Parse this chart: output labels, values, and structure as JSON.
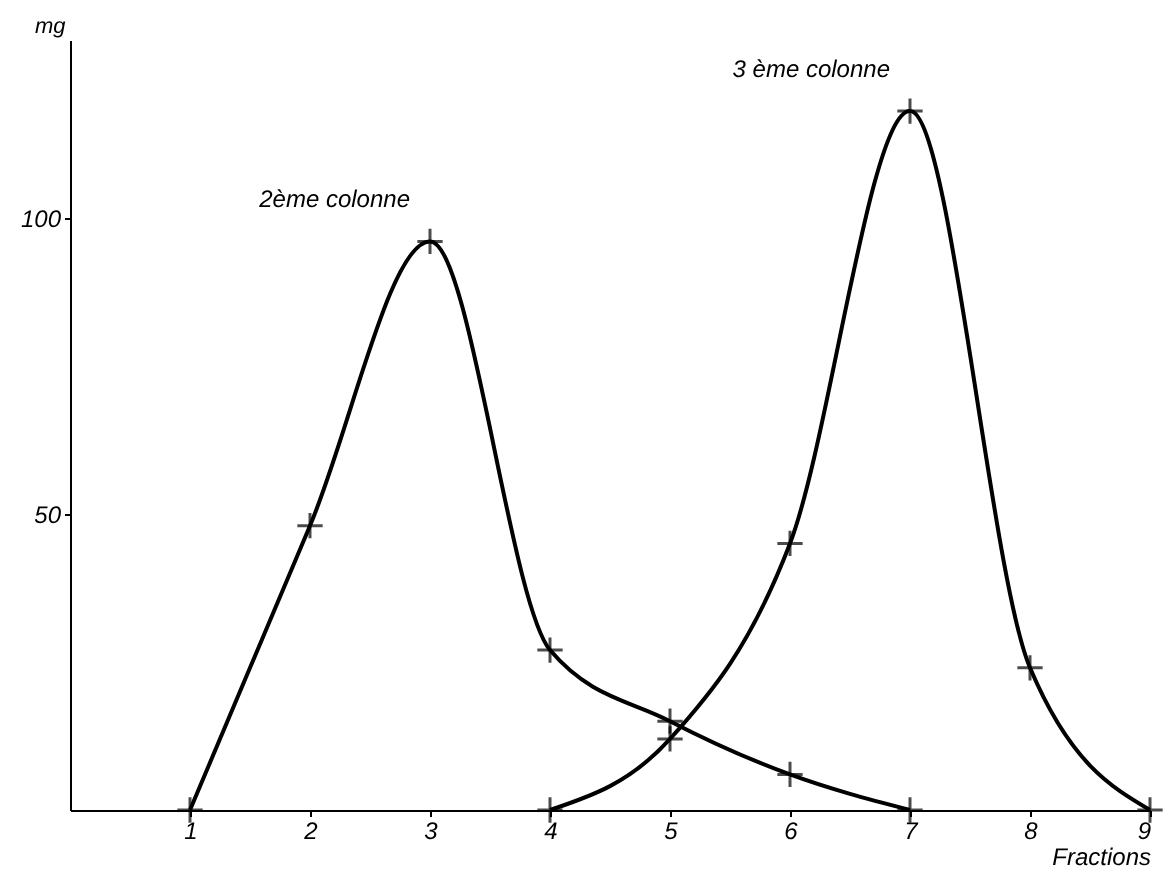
{
  "chart_data": {
    "type": "line",
    "xlabel": "Fractions",
    "ylabel": "mg",
    "xlim": [
      0,
      9
    ],
    "xticks": [
      1,
      2,
      3,
      4,
      5,
      6,
      7,
      8,
      9
    ],
    "ylim": [
      0,
      130
    ],
    "yticks": [
      50,
      100
    ],
    "grid": false,
    "legend": false,
    "marker": "cross",
    "line_style": "solid",
    "x": [
      1,
      2,
      3,
      4,
      5,
      6,
      7
    ],
    "series": [
      {
        "name": "2ème colonne",
        "color": "#000000",
        "values": [
          0,
          48,
          96,
          27,
          15,
          6,
          0
        ]
      },
      {
        "name": "3 ème colonne",
        "color": "#000000",
        "x": [
          4,
          5,
          6,
          7,
          8,
          9
        ],
        "values": [
          0,
          12,
          45,
          118,
          24,
          0
        ]
      }
    ]
  }
}
